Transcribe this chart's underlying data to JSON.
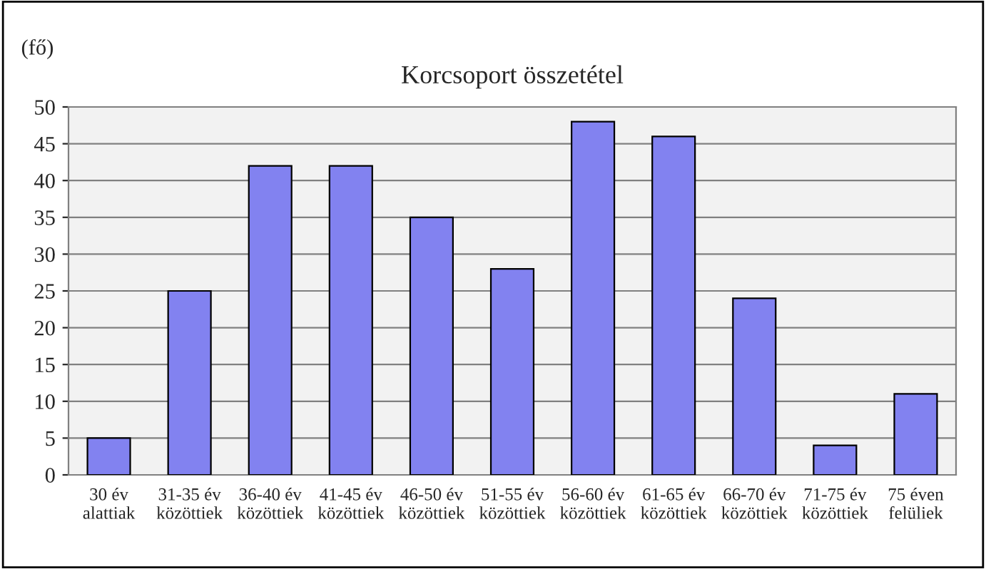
{
  "chart_data": {
    "type": "bar",
    "title": "Korcsoport összetétel",
    "ylabel": "(fő)",
    "categories": [
      "30 év\nalattiak",
      "31-35 év\nközöttiek",
      "36-40 év\nközöttiek",
      "41-45 év\nközöttiek",
      "46-50 év\nközöttiek",
      "51-55 év\nközöttiek",
      "56-60 év\nközöttiek",
      "61-65 év\nközöttiek",
      "66-70 év\nközöttiek",
      "71-75 év\nközöttiek",
      "75 éven\nfelüliek"
    ],
    "values": [
      5,
      25,
      42,
      42,
      35,
      28,
      48,
      46,
      24,
      4,
      11
    ],
    "color": "#8282f0",
    "ylim": [
      0,
      50
    ],
    "yticks": [
      0,
      5,
      10,
      15,
      20,
      25,
      30,
      35,
      40,
      45,
      50
    ],
    "grid": "y",
    "legend": false
  }
}
